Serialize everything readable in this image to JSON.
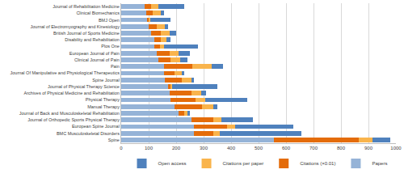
{
  "chart_data": {
    "type": "bar",
    "orientation": "horizontal",
    "stacked": true,
    "grid": true,
    "legend": "bottom",
    "categories": [
      "Spine",
      "BMC Musculoskeletal Disorders",
      "European Spine Journal",
      "Journal of Orthopedic Sports Physical Therapy",
      "Journal of Back and Musculoskeletal Rehabilitation",
      "Manual Therapy",
      "Physical Therapy",
      "Archives of Physical Medicine and Rehabilitation",
      "Journal of Physical Therapy Science",
      "Spine Journal",
      "Journal Of Manipulative and Physiological Therapeutics",
      "Pain",
      "Clinical Journal of Pain",
      "European Journal of Pain",
      "Plos One",
      "Disability and Rehabilitation",
      "British Journal of Sports Medicine",
      "Journal of Electromyography and Kinesiology",
      "BMJ Open",
      "Clinical Biomechanics",
      "Journal of Rehabilitation Medicine"
    ],
    "series": [
      {
        "name": "Papers",
        "color": "#95b3d7",
        "values": [
          555,
          265,
          265,
          255,
          210,
          195,
          180,
          175,
          170,
          160,
          155,
          155,
          135,
          130,
          120,
          120,
          110,
          100,
          95,
          90,
          85
        ]
      },
      {
        "name": "Citations (×0.01)",
        "color": "#e46c0a",
        "values": [
          310,
          70,
          120,
          80,
          20,
          100,
          90,
          80,
          10,
          60,
          40,
          105,
          45,
          45,
          20,
          25,
          35,
          30,
          5,
          25,
          25
        ]
      },
      {
        "name": "Citations per paper",
        "color": "#f9b44c",
        "values": [
          50,
          25,
          30,
          30,
          10,
          40,
          35,
          35,
          5,
          35,
          25,
          70,
          35,
          35,
          15,
          20,
          30,
          30,
          5,
          30,
          25
        ]
      },
      {
        "name": "Open access",
        "color": "#4f81bd",
        "values": [
          65,
          295,
          210,
          115,
          10,
          15,
          155,
          20,
          165,
          10,
          10,
          40,
          25,
          40,
          125,
          15,
          25,
          10,
          75,
          10,
          95
        ]
      }
    ],
    "xlim": [
      0,
      1000
    ],
    "xticks": [
      0,
      100,
      200,
      300,
      400,
      500,
      600,
      700,
      800,
      900,
      1000
    ]
  }
}
